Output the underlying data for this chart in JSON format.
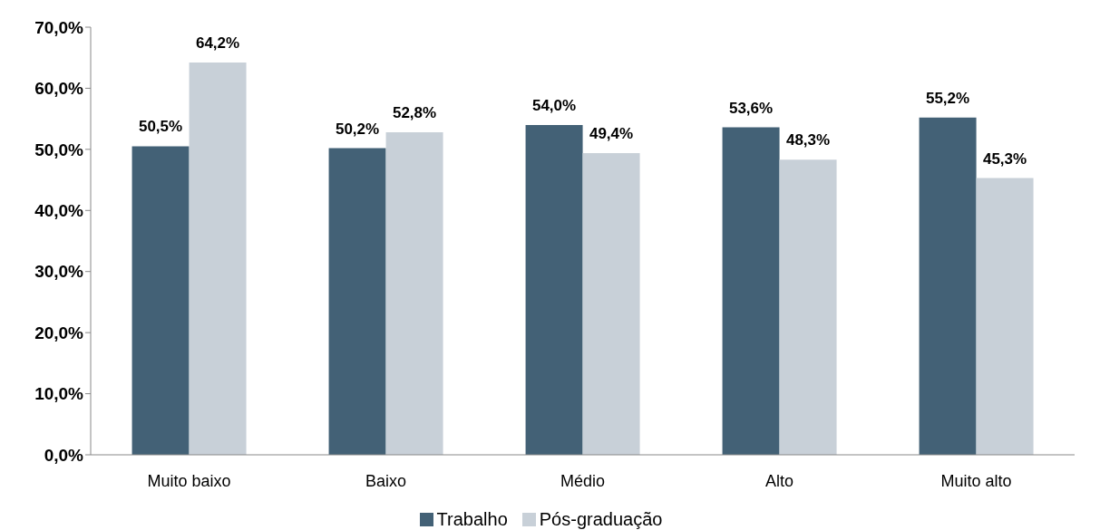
{
  "chart_data": {
    "type": "bar",
    "categories": [
      "Muito baixo",
      "Baixo",
      "Médio",
      "Alto",
      "Muito alto"
    ],
    "series": [
      {
        "name": "Trabalho",
        "color": "#436176",
        "values": [
          50.5,
          50.2,
          54.0,
          53.6,
          55.2
        ],
        "value_labels": [
          "50,5%",
          "50,2%",
          "54,0%",
          "53,6%",
          "55,2%"
        ]
      },
      {
        "name": "Pós-graduação",
        "color": "#c8d0d8",
        "values": [
          64.2,
          52.8,
          49.4,
          48.3,
          45.3
        ],
        "value_labels": [
          "64,2%",
          "52,8%",
          "49,4%",
          "48,3%",
          "45,3%"
        ]
      }
    ],
    "ylim": [
      0,
      70
    ],
    "yticks": [
      {
        "value": 0,
        "label": "0,0%"
      },
      {
        "value": 10,
        "label": "10,0%"
      },
      {
        "value": 20,
        "label": "20,0%"
      },
      {
        "value": 30,
        "label": "30,0%"
      },
      {
        "value": 40,
        "label": "40,0%"
      },
      {
        "value": 50,
        "label": "50,0%"
      },
      {
        "value": 60,
        "label": "60,0%"
      },
      {
        "value": 70,
        "label": "70,0%"
      }
    ],
    "grid": false,
    "legend": "bottom"
  }
}
